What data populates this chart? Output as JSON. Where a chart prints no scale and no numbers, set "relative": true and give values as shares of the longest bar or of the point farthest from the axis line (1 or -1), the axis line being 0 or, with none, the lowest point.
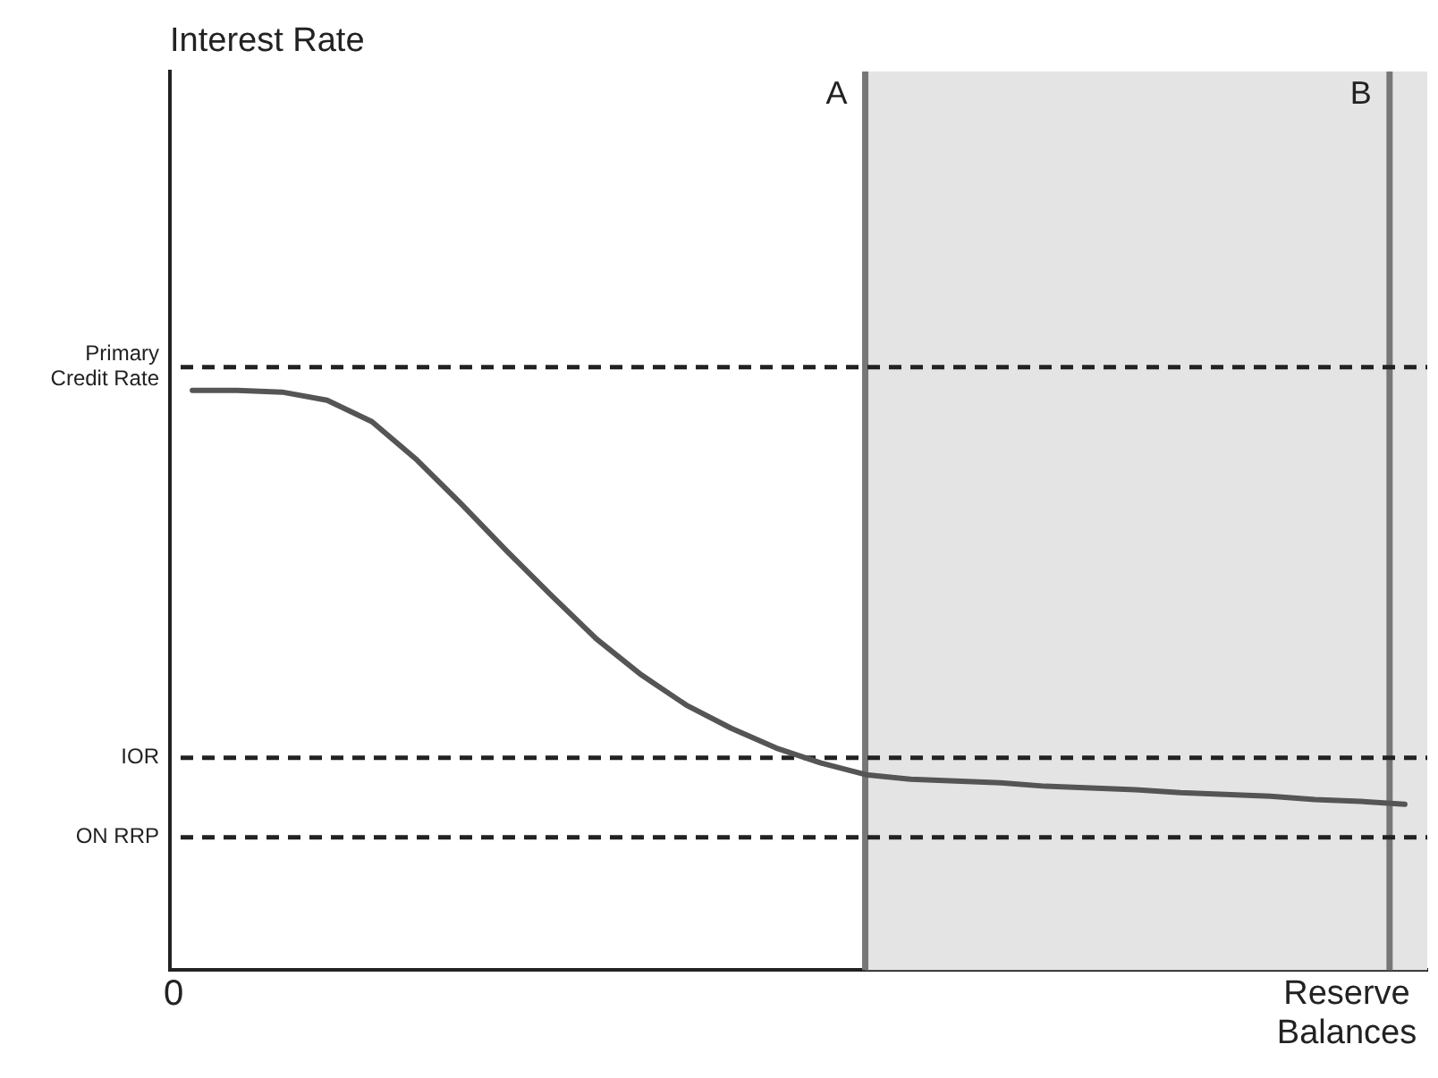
{
  "chart_data": {
    "type": "line",
    "relative": true,
    "xlabel": "Reserve Balances",
    "annotations": [
      "0",
      "Interest Rate",
      "A",
      "B"
    ],
    "grid": false,
    "legend": false,
    "marker": "none",
    "categories": [
      null,
      null,
      null,
      null,
      null,
      null,
      null,
      null,
      null,
      null,
      null,
      null,
      null,
      null,
      null,
      null,
      null,
      null,
      null,
      null,
      null,
      null,
      null,
      null,
      null,
      null,
      null,
      null
    ],
    "series": [
      {
        "color": "#555555",
        "values": [
          1.0,
          1.0,
          0.997,
          0.983,
          0.946,
          0.88,
          0.803,
          0.723,
          0.646,
          0.571,
          0.509,
          0.457,
          0.417,
          0.383,
          0.357,
          0.337,
          0.329,
          0.326,
          0.323,
          0.317,
          0.314,
          0.311,
          0.306,
          0.303,
          0.3,
          0.294,
          0.291,
          0.286
        ]
      }
    ],
    "ref_lines": [
      {
        "axis": "y",
        "value": 1.04,
        "label": "Primary Credit Rate",
        "line_style": "dashed",
        "color": "#222222"
      },
      {
        "axis": "y",
        "value": 0.366,
        "label": "IOR",
        "line_style": "dashed",
        "color": "#222222"
      },
      {
        "axis": "y",
        "value": 0.229,
        "label": "ON RRP",
        "line_style": "dashed",
        "color": "#222222"
      }
    ]
  }
}
